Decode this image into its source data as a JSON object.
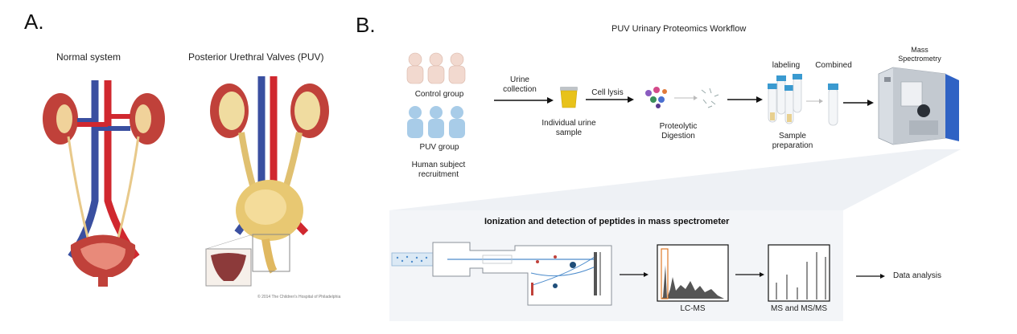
{
  "panel_a": {
    "letter": "A.",
    "normal_label": "Normal system",
    "puv_label": "Posterior Urethral Valves (PUV)",
    "copyright": "© 2014 The Children's Hospital of Philadelphia"
  },
  "panel_b": {
    "letter": "B.",
    "title": "PUV Urinary Proteomics Workflow",
    "control_group": "Control group",
    "puv_group": "PUV group",
    "recruitment_line1": "Human subject",
    "recruitment_line2": "recruitment",
    "urine_line1": "Urine",
    "urine_line2": "collection",
    "sample_line1": "Individual urine",
    "sample_line2": "sample",
    "cell_lysis": "Cell lysis",
    "proteolytic_line1": "Proteolytic",
    "proteolytic_line2": "Digestion",
    "labeling": "labeling",
    "combined": "Combined",
    "sample_prep_line1": "Sample",
    "sample_prep_line2": "preparation",
    "mass_line1": "Mass",
    "mass_line2": "Spectrometry",
    "ionization_title": "Ionization and detection of peptides in mass spectrometer",
    "lcms": "LC-MS",
    "msms": "MS and MS/MS",
    "data_analysis": "Data analysis"
  },
  "colors": {
    "artery": "#d0282f",
    "vein": "#3a4fa0",
    "kidney": "#c0413a",
    "ureter": "#e8c98a",
    "baby_control": "#f2d9cf",
    "baby_puv": "#a8cce8",
    "urine": "#e8c21a",
    "box_bg": "#f3f5f8",
    "ms_blue": "#3a6fd0"
  }
}
